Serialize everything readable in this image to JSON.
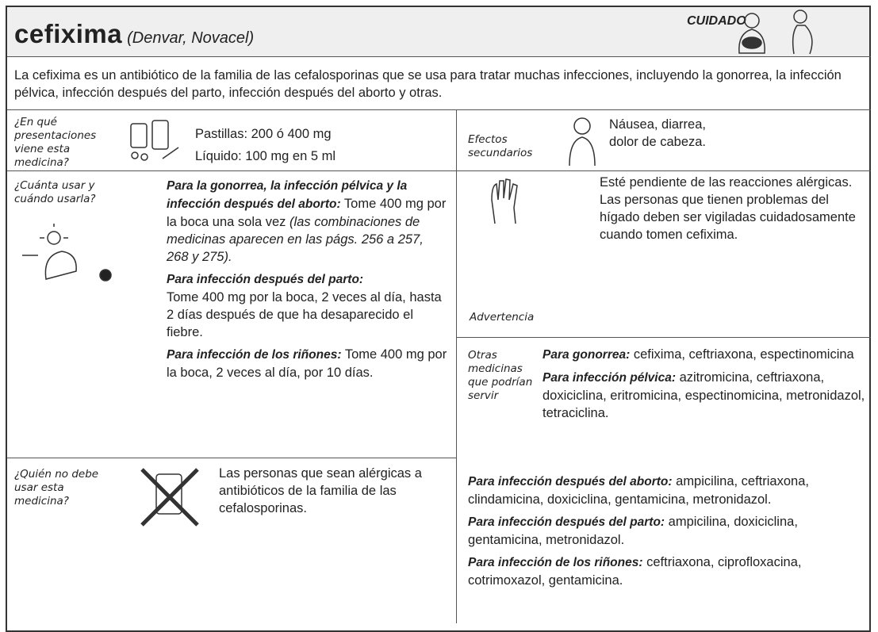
{
  "header": {
    "title": "cefixima",
    "subtitle": "(Denvar, Novacel)",
    "warning": "CUIDADO"
  },
  "intro": "La cefixima es un antibiótico de la familia de las cefalosporinas que se usa para tratar muchas infecciones, incluyendo la gonorrea, la infección pélvica, infección después del parto, infección después del aborto y otras.",
  "forms": {
    "label": "¿En qué presentaciones viene esta medicina?",
    "lines": [
      "Pastillas: 200 ó 400 mg",
      "Líquido: 100 mg en 5 ml"
    ]
  },
  "side_effects": {
    "label": "Efectos secundarios",
    "lines": [
      "Náusea, diarrea,",
      "dolor de cabeza."
    ]
  },
  "dosage": {
    "label": "¿Cuánta usar y cuándo usarla?",
    "items": [
      {
        "lead": "Para la gonorrea, la infección pélvica y la infección después del aborto:",
        "text": "Tome 400 mg por la boca una sola vez",
        "note": "(las combinaciones de medicinas aparecen en las págs. 256 a 257, 268 y 275)."
      },
      {
        "lead": "Para infección después del parto:",
        "text": "Tome 400 mg por la boca, 2 veces al día, hasta 2 días después de que ha desaparecido el fiebre."
      },
      {
        "lead": "Para infección de los riñones:",
        "text": "Tome 400 mg por la boca, 2 veces al día, por 10 días."
      }
    ]
  },
  "warning": {
    "label": "Advertencia",
    "text": "Esté pendiente de las reacciones alérgicas. Las personas que tienen problemas del hígado deben ser vigiladas cuidadosamente cuando tomen cefixima."
  },
  "contraindications": {
    "label": "¿Quién no debe usar esta medicina?",
    "text": "Las personas que sean alérgicas a antibióticos de la familia de las cefalosporinas."
  },
  "alternatives": {
    "label": "Otras medicinas que podrían servir",
    "items": [
      {
        "lead": "Para gonorrea:",
        "text": "cefixima, ceftriaxona, espectinomicina"
      },
      {
        "lead": "Para infección pélvica:",
        "text": "azitromicina, ceftriaxona, doxiciclina, eritromicina, espectinomicina, metronidazol, tetraciclina."
      },
      {
        "lead": "Para infección después del aborto:",
        "text": "ampicilina, ceftriaxona, clindamicina, doxiciclina, gentamicina, metronidazol."
      },
      {
        "lead": "Para infección después del parto:",
        "text": "ampicilina, doxiciclina, gentamicina, metronidazol."
      },
      {
        "lead": "Para infección de los riñones:",
        "text": "ceftriaxona, ciprofloxacina, cotrimoxazol, gentamicina."
      }
    ]
  }
}
